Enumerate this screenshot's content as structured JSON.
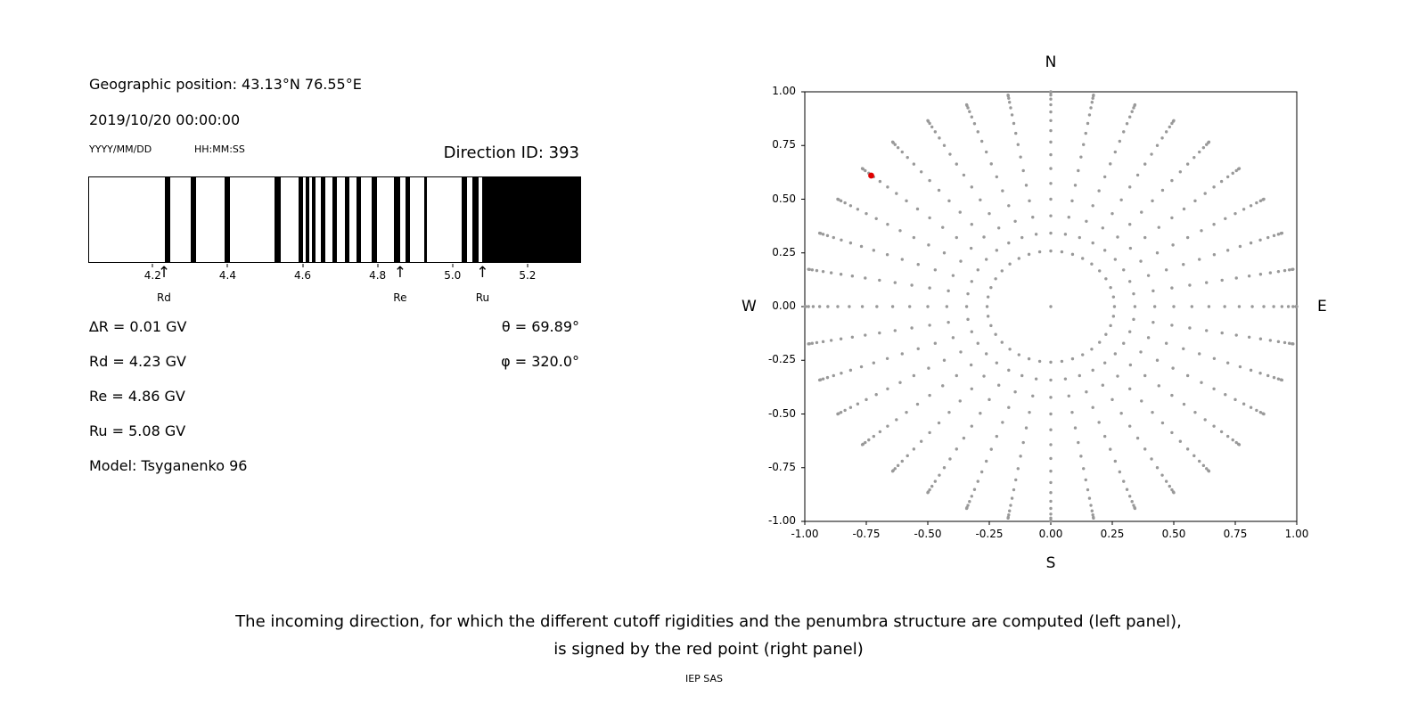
{
  "left_panel": {
    "geo_position": "Geographic position: 43.13°N 76.55°E",
    "datetime": "2019/10/20 00:00:00",
    "date_format_label": "YYYY/MM/DD",
    "time_format_label": "HH:MM:SS",
    "direction_id": "Direction ID: 393",
    "info_lines": [
      "∆R = 0.01 GV",
      "Rd = 4.23 GV",
      "Re = 4.86 GV",
      "Ru = 5.08 GV",
      "Model: Tsyganenko 96"
    ],
    "angle_lines": [
      "θ = 69.89°",
      "φ = 320.0°"
    ]
  },
  "right_panel": {
    "compass": {
      "top": "N",
      "bottom": "S",
      "left": "W",
      "right": "E"
    }
  },
  "caption": {
    "line1": "The incoming direction, for which the different cutoff rigidities and the penumbra structure are computed (left panel),",
    "line2": "is signed by the red point (right panel)"
  },
  "footer": "IEP SAS",
  "chart_data": [
    {
      "type": "barcode",
      "description": "Penumbra structure: black bands are forbidden rigidity intervals between Rd and Ru",
      "xlim": [
        4.028,
        5.343
      ],
      "xticks": [
        4.2,
        4.4,
        4.6,
        4.8,
        5.0,
        5.2
      ],
      "xtick_labels": [
        "4.2",
        "4.4",
        "4.6",
        "4.8",
        "5.0",
        "5.2"
      ],
      "bar_color": "#000000",
      "black_segments_gv": [
        [
          4.23,
          4.245
        ],
        [
          4.3,
          4.315
        ],
        [
          4.39,
          4.405
        ],
        [
          4.525,
          4.54
        ],
        [
          4.59,
          4.6
        ],
        [
          4.607,
          4.617
        ],
        [
          4.625,
          4.635
        ],
        [
          4.648,
          4.66
        ],
        [
          4.68,
          4.692
        ],
        [
          4.712,
          4.724
        ],
        [
          4.745,
          4.757
        ],
        [
          4.785,
          4.8
        ],
        [
          4.845,
          4.86
        ],
        [
          4.876,
          4.888
        ],
        [
          4.925,
          4.933
        ],
        [
          5.025,
          5.04
        ],
        [
          5.055,
          5.07
        ],
        [
          5.08,
          5.343
        ]
      ],
      "markers": [
        {
          "label": "Rd",
          "gv": 4.23
        },
        {
          "label": "Re",
          "gv": 4.86
        },
        {
          "label": "Ru",
          "gv": 5.08
        }
      ]
    },
    {
      "type": "scatter",
      "description": "Grid of incoming directions (r = sin(zenith), spokes by azimuth); red point marks Direction ID 393",
      "xlim": [
        -1,
        1
      ],
      "ylim": [
        -1,
        1
      ],
      "xticks": [
        -1,
        -0.75,
        -0.5,
        -0.25,
        0,
        0.25,
        0.5,
        0.75,
        1
      ],
      "yticks": [
        -1,
        -0.75,
        -0.5,
        -0.25,
        0,
        0.25,
        0.5,
        0.75,
        1
      ],
      "xtick_labels": [
        "-1.00",
        "-0.75",
        "-0.50",
        "-0.25",
        "0.00",
        "0.25",
        "0.50",
        "0.75",
        "1.00"
      ],
      "ytick_labels": [
        "-1.00",
        "-0.75",
        "-0.50",
        "-0.25",
        "0.00",
        "0.25",
        "0.50",
        "0.75",
        "1.00"
      ],
      "grid": false,
      "point_color": "#999999",
      "points_generator": {
        "azimuth_deg": {
          "start": 0,
          "end": 350,
          "step": 10
        },
        "zenith_deg": {
          "start": 15,
          "end": 90,
          "step": 5
        },
        "radius_rule": "sin(zenith)"
      },
      "center_dot": [
        0,
        0
      ],
      "red_point": {
        "x": -0.73,
        "y": 0.61,
        "color": "#e00000"
      }
    }
  ]
}
